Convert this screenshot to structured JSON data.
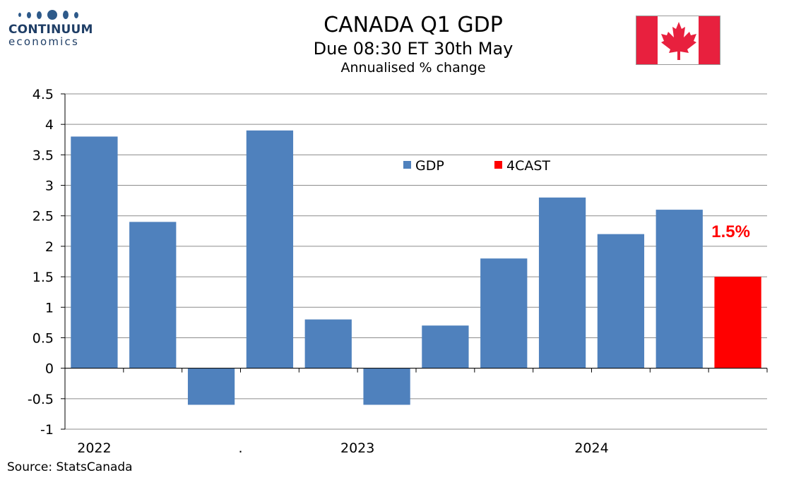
{
  "header": {
    "logo_name": "CONTINUUM",
    "logo_sub": "economics",
    "title": "CANADA Q1 GDP",
    "subtitle": "Due 08:30 ET 30th May",
    "units": "Annualised % change",
    "flag_icon": "canada-flag-icon"
  },
  "footer": {
    "source": "Source: StatsCanada"
  },
  "colors": {
    "gdp": "#4f81bd",
    "forecast": "#ff0000",
    "flag_red": "#e8203e",
    "logo": "#2e5a8a"
  },
  "chart_data": {
    "type": "bar",
    "ylim": [
      -1,
      4.5
    ],
    "yticks": [
      "4.5",
      "4",
      "3.5",
      "3",
      "2.5",
      "2",
      "1.5",
      "1",
      "0.5",
      "0",
      "-0.5",
      "-1"
    ],
    "x_labels": [
      {
        "label": "2022",
        "index": 0
      },
      {
        "label": ".",
        "index": 2.5
      },
      {
        "label": "2023",
        "index": 4.5
      },
      {
        "label": "2024",
        "index": 8.5
      }
    ],
    "grid": true,
    "legend": {
      "position": "top-center",
      "entries": [
        {
          "label": "GDP",
          "series": "gdp"
        },
        {
          "label": "4CAST",
          "series": "forecast"
        }
      ]
    },
    "series": [
      {
        "name": "GDP",
        "key": "gdp",
        "values": [
          3.8,
          2.4,
          -0.6,
          3.9,
          0.8,
          -0.6,
          0.7,
          1.8,
          2.8,
          2.2,
          2.6,
          null
        ]
      },
      {
        "name": "4CAST",
        "key": "forecast",
        "values": [
          null,
          null,
          null,
          null,
          null,
          null,
          null,
          null,
          null,
          null,
          null,
          1.5
        ]
      }
    ],
    "annotations": [
      {
        "text": "1.5%",
        "index": 11
      }
    ]
  }
}
